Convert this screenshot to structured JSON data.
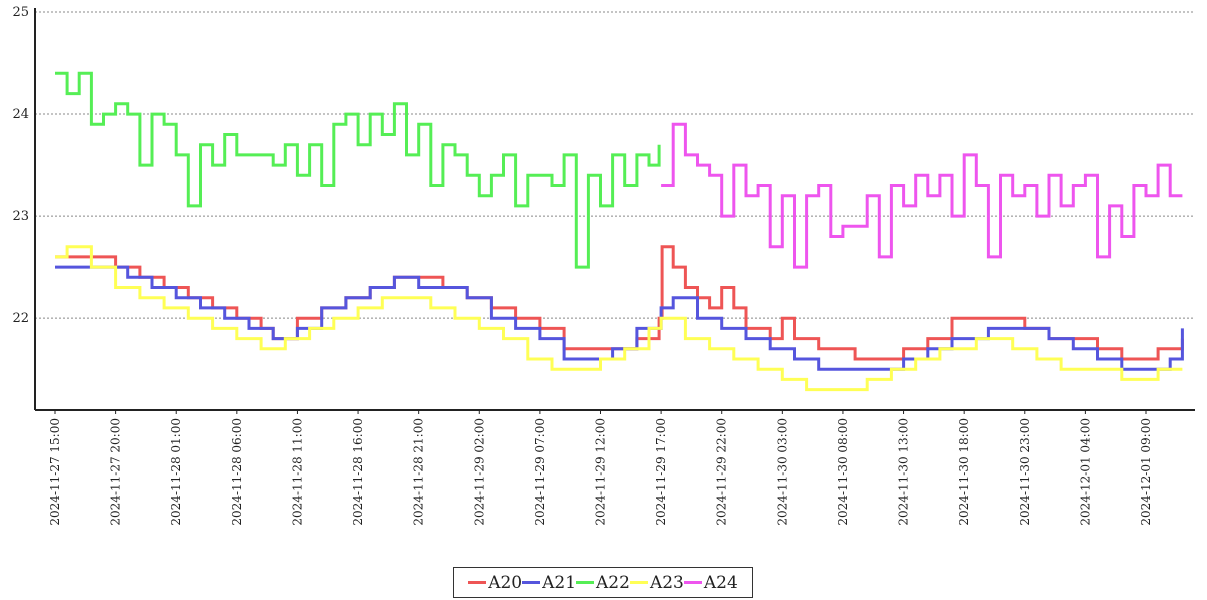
{
  "chart_data": {
    "type": "line",
    "title": "",
    "xlabel": "",
    "ylabel": "",
    "ylim": [
      21.1,
      25
    ],
    "yticks": [
      22,
      23,
      24,
      25
    ],
    "xlim": [
      "2024-11-27 14:00",
      "2024-12-01 14:00"
    ],
    "xtick_labels": [
      "2024-11-27 15:00",
      "2024-11-27 20:00",
      "2024-11-28 01:00",
      "2024-11-28 06:00",
      "2024-11-28 11:00",
      "2024-11-28 16:00",
      "2024-11-28 21:00",
      "2024-11-29 02:00",
      "2024-11-29 07:00",
      "2024-11-29 12:00",
      "2024-11-29 17:00",
      "2024-11-29 22:00",
      "2024-11-30 03:00",
      "2024-11-30 08:00",
      "2024-11-30 13:00",
      "2024-11-30 18:00",
      "2024-11-30 23:00",
      "2024-12-01 04:00",
      "2024-12-01 09:00"
    ],
    "grid": "horizontal-dotted",
    "legend_position": "bottom-center",
    "series": [
      {
        "name": "A20",
        "color": "#ee5555",
        "x": [
          "2024-11-27 15:00",
          "2024-11-27 17:00",
          "2024-11-27 19:00",
          "2024-11-27 20:00",
          "2024-11-27 22:00",
          "2024-11-28 00:00",
          "2024-11-28 02:00",
          "2024-11-28 04:00",
          "2024-11-28 06:00",
          "2024-11-28 08:00",
          "2024-11-28 09:00",
          "2024-11-28 11:00",
          "2024-11-28 13:00",
          "2024-11-28 15:00",
          "2024-11-28 17:00",
          "2024-11-28 19:00",
          "2024-11-28 21:00",
          "2024-11-28 23:00",
          "2024-11-29 01:00",
          "2024-11-29 03:00",
          "2024-11-29 05:00",
          "2024-11-29 07:00",
          "2024-11-29 09:00",
          "2024-11-29 11:00",
          "2024-11-29 13:00",
          "2024-11-29 15:00",
          "2024-11-29 16:50",
          "2024-11-29 17:05",
          "2024-11-29 18:00",
          "2024-11-29 19:00",
          "2024-11-29 20:00",
          "2024-11-29 21:00",
          "2024-11-29 22:00",
          "2024-11-29 23:00",
          "2024-11-30 00:00",
          "2024-11-30 02:00",
          "2024-11-30 03:00",
          "2024-11-30 04:00",
          "2024-11-30 06:00",
          "2024-11-30 09:00",
          "2024-11-30 11:00",
          "2024-11-30 13:00",
          "2024-11-30 15:00",
          "2024-11-30 17:00",
          "2024-11-30 20:00",
          "2024-11-30 23:00",
          "2024-12-01 01:00",
          "2024-12-01 03:00",
          "2024-12-01 05:00",
          "2024-12-01 07:00",
          "2024-12-01 09:00",
          "2024-12-01 10:00",
          "2024-12-01 12:00"
        ],
        "y": [
          22.6,
          22.6,
          22.6,
          22.5,
          22.4,
          22.3,
          22.2,
          22.1,
          22.0,
          21.9,
          21.8,
          22.0,
          22.1,
          22.2,
          22.3,
          22.4,
          22.4,
          22.3,
          22.2,
          22.1,
          22.0,
          21.9,
          21.7,
          21.7,
          21.7,
          21.8,
          22.0,
          22.7,
          22.5,
          22.3,
          22.2,
          22.1,
          22.3,
          22.1,
          21.9,
          21.8,
          22.0,
          21.8,
          21.7,
          21.6,
          21.6,
          21.7,
          21.8,
          22.0,
          22.0,
          21.9,
          21.8,
          21.8,
          21.7,
          21.6,
          21.6,
          21.7,
          21.8
        ]
      },
      {
        "name": "A21",
        "color": "#5555dd",
        "x": [
          "2024-11-27 15:00",
          "2024-11-27 17:00",
          "2024-11-27 19:00",
          "2024-11-27 21:00",
          "2024-11-27 23:00",
          "2024-11-28 01:00",
          "2024-11-28 03:00",
          "2024-11-28 05:00",
          "2024-11-28 07:00",
          "2024-11-28 09:00",
          "2024-11-28 11:00",
          "2024-11-28 13:00",
          "2024-11-28 15:00",
          "2024-11-28 17:00",
          "2024-11-28 19:00",
          "2024-11-28 21:00",
          "2024-11-28 23:00",
          "2024-11-29 01:00",
          "2024-11-29 03:00",
          "2024-11-29 05:00",
          "2024-11-29 07:00",
          "2024-11-29 09:00",
          "2024-11-29 11:00",
          "2024-11-29 13:00",
          "2024-11-29 15:00",
          "2024-11-29 17:00",
          "2024-11-29 18:00",
          "2024-11-29 20:00",
          "2024-11-29 22:00",
          "2024-11-30 00:00",
          "2024-11-30 02:00",
          "2024-11-30 04:00",
          "2024-11-30 06:00",
          "2024-11-30 09:00",
          "2024-11-30 11:00",
          "2024-11-30 13:00",
          "2024-11-30 15:00",
          "2024-11-30 17:00",
          "2024-11-30 20:00",
          "2024-11-30 23:00",
          "2024-12-01 01:00",
          "2024-12-01 03:00",
          "2024-12-01 05:00",
          "2024-12-01 07:00",
          "2024-12-01 09:00",
          "2024-12-01 11:00",
          "2024-12-01 12:00"
        ],
        "y": [
          22.5,
          22.5,
          22.5,
          22.4,
          22.3,
          22.2,
          22.1,
          22.0,
          21.9,
          21.8,
          21.9,
          22.1,
          22.2,
          22.3,
          22.4,
          22.3,
          22.3,
          22.2,
          22.0,
          21.9,
          21.8,
          21.6,
          21.6,
          21.7,
          21.9,
          22.1,
          22.2,
          22.0,
          21.9,
          21.8,
          21.7,
          21.6,
          21.5,
          21.5,
          21.5,
          21.6,
          21.7,
          21.8,
          21.9,
          21.9,
          21.8,
          21.7,
          21.6,
          21.5,
          21.5,
          21.6,
          21.9
        ]
      },
      {
        "name": "A22",
        "color": "#55ee55",
        "x": [
          "2024-11-27 15:00",
          "2024-11-27 16:00",
          "2024-11-27 17:00",
          "2024-11-27 18:00",
          "2024-11-27 19:00",
          "2024-11-27 20:00",
          "2024-11-27 21:00",
          "2024-11-27 22:00",
          "2024-11-27 23:00",
          "2024-11-28 00:00",
          "2024-11-28 01:00",
          "2024-11-28 02:00",
          "2024-11-28 03:00",
          "2024-11-28 04:00",
          "2024-11-28 05:00",
          "2024-11-28 06:00",
          "2024-11-28 07:00",
          "2024-11-28 08:00",
          "2024-11-28 09:00",
          "2024-11-28 10:00",
          "2024-11-28 11:00",
          "2024-11-28 12:00",
          "2024-11-28 13:00",
          "2024-11-28 14:00",
          "2024-11-28 15:00",
          "2024-11-28 16:00",
          "2024-11-28 17:00",
          "2024-11-28 18:00",
          "2024-11-28 19:00",
          "2024-11-28 20:00",
          "2024-11-28 21:00",
          "2024-11-28 22:00",
          "2024-11-28 23:00",
          "2024-11-29 00:00",
          "2024-11-29 01:00",
          "2024-11-29 02:00",
          "2024-11-29 03:00",
          "2024-11-29 04:00",
          "2024-11-29 05:00",
          "2024-11-29 06:00",
          "2024-11-29 07:00",
          "2024-11-29 08:00",
          "2024-11-29 09:00",
          "2024-11-29 10:00",
          "2024-11-29 11:00",
          "2024-11-29 12:00",
          "2024-11-29 13:00",
          "2024-11-29 14:00",
          "2024-11-29 15:00",
          "2024-11-29 16:00",
          "2024-11-29 16:50"
        ],
        "y": [
          24.4,
          24.2,
          24.4,
          23.9,
          24.0,
          24.1,
          24.0,
          23.5,
          24.0,
          23.9,
          23.6,
          23.1,
          23.7,
          23.5,
          23.8,
          23.6,
          23.6,
          23.6,
          23.5,
          23.7,
          23.4,
          23.7,
          23.3,
          23.9,
          24.0,
          23.7,
          24.0,
          23.8,
          24.1,
          23.6,
          23.9,
          23.3,
          23.7,
          23.6,
          23.4,
          23.2,
          23.4,
          23.6,
          23.1,
          23.4,
          23.4,
          23.3,
          23.6,
          22.5,
          23.4,
          23.1,
          23.6,
          23.3,
          23.6,
          23.5,
          23.7
        ]
      },
      {
        "name": "A23",
        "color": "#ffff55",
        "x": [
          "2024-11-27 15:00",
          "2024-11-27 16:00",
          "2024-11-27 18:00",
          "2024-11-27 20:00",
          "2024-11-27 22:00",
          "2024-11-28 00:00",
          "2024-11-28 02:00",
          "2024-11-28 04:00",
          "2024-11-28 06:00",
          "2024-11-28 08:00",
          "2024-11-28 10:00",
          "2024-11-28 12:00",
          "2024-11-28 14:00",
          "2024-11-28 16:00",
          "2024-11-28 18:00",
          "2024-11-28 20:00",
          "2024-11-28 22:00",
          "2024-11-29 00:00",
          "2024-11-29 02:00",
          "2024-11-29 04:00",
          "2024-11-29 06:00",
          "2024-11-29 08:00",
          "2024-11-29 10:00",
          "2024-11-29 12:00",
          "2024-11-29 14:00",
          "2024-11-29 16:00",
          "2024-11-29 17:00",
          "2024-11-29 19:00",
          "2024-11-29 21:00",
          "2024-11-29 23:00",
          "2024-11-30 01:00",
          "2024-11-30 03:00",
          "2024-11-30 05:00",
          "2024-11-30 07:00",
          "2024-11-30 10:00",
          "2024-11-30 12:00",
          "2024-11-30 14:00",
          "2024-11-30 16:00",
          "2024-11-30 19:00",
          "2024-11-30 22:00",
          "2024-12-01 00:00",
          "2024-12-01 02:00",
          "2024-12-01 05:00",
          "2024-12-01 07:00",
          "2024-12-01 09:00",
          "2024-12-01 10:00",
          "2024-12-01 12:00"
        ],
        "y": [
          22.6,
          22.7,
          22.5,
          22.3,
          22.2,
          22.1,
          22.0,
          21.9,
          21.8,
          21.7,
          21.8,
          21.9,
          22.0,
          22.1,
          22.2,
          22.2,
          22.1,
          22.0,
          21.9,
          21.8,
          21.6,
          21.5,
          21.5,
          21.6,
          21.7,
          21.9,
          22.0,
          21.8,
          21.7,
          21.6,
          21.5,
          21.4,
          21.3,
          21.3,
          21.4,
          21.5,
          21.6,
          21.7,
          21.8,
          21.7,
          21.6,
          21.5,
          21.5,
          21.4,
          21.4,
          21.5,
          21.5
        ]
      },
      {
        "name": "A24",
        "color": "#ee55ee",
        "x": [
          "2024-11-29 17:00",
          "2024-11-29 18:00",
          "2024-11-29 19:00",
          "2024-11-29 20:00",
          "2024-11-29 21:00",
          "2024-11-29 22:00",
          "2024-11-29 23:00",
          "2024-11-30 00:00",
          "2024-11-30 01:00",
          "2024-11-30 02:00",
          "2024-11-30 03:00",
          "2024-11-30 04:00",
          "2024-11-30 05:00",
          "2024-11-30 06:00",
          "2024-11-30 07:00",
          "2024-11-30 08:00",
          "2024-11-30 09:00",
          "2024-11-30 10:00",
          "2024-11-30 11:00",
          "2024-11-30 12:00",
          "2024-11-30 13:00",
          "2024-11-30 14:00",
          "2024-11-30 15:00",
          "2024-11-30 16:00",
          "2024-11-30 17:00",
          "2024-11-30 18:00",
          "2024-11-30 19:00",
          "2024-11-30 20:00",
          "2024-11-30 21:00",
          "2024-11-30 22:00",
          "2024-11-30 23:00",
          "2024-12-01 00:00",
          "2024-12-01 01:00",
          "2024-12-01 02:00",
          "2024-12-01 03:00",
          "2024-12-01 04:00",
          "2024-12-01 05:00",
          "2024-12-01 06:00",
          "2024-12-01 07:00",
          "2024-12-01 08:00",
          "2024-12-01 09:00",
          "2024-12-01 10:00",
          "2024-12-01 11:00",
          "2024-12-01 12:00"
        ],
        "y": [
          23.3,
          23.9,
          23.6,
          23.5,
          23.4,
          23.0,
          23.5,
          23.2,
          23.3,
          22.7,
          23.2,
          22.5,
          23.2,
          23.3,
          22.8,
          22.9,
          22.9,
          23.2,
          22.6,
          23.3,
          23.1,
          23.4,
          23.2,
          23.4,
          23.0,
          23.6,
          23.3,
          22.6,
          23.4,
          23.2,
          23.3,
          23.0,
          23.4,
          23.1,
          23.3,
          23.4,
          22.6,
          23.1,
          22.8,
          23.3,
          23.2,
          23.5,
          23.2,
          23.2
        ]
      }
    ]
  }
}
